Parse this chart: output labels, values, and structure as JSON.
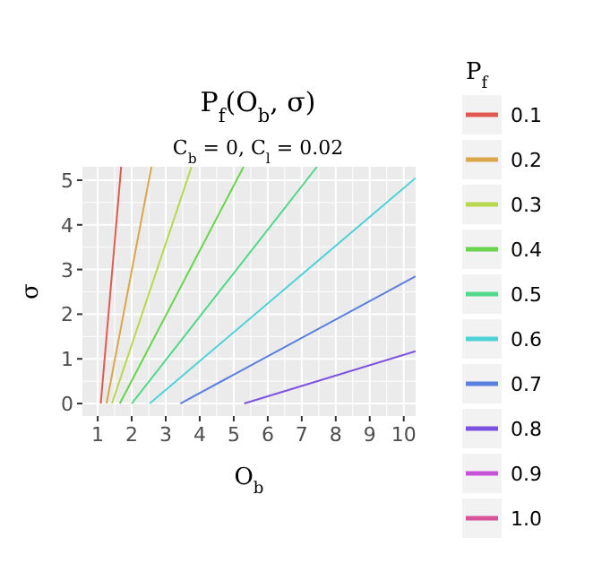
{
  "chart_data": {
    "type": "line",
    "title": "P$_{f}$(O$_{b}$, σ)",
    "subtitle": "C$_{b}$ = 0, C$_{l}$ = 0.02",
    "xlabel": "O$_{b}$",
    "ylabel": "σ",
    "legend_title": "P$_{f}$",
    "xlim": [
      0.55,
      10.35
    ],
    "ylim": [
      -0.28,
      5.3
    ],
    "xticks": [
      1,
      2,
      3,
      4,
      5,
      6,
      7,
      8,
      9,
      10
    ],
    "yticks": [
      0,
      1,
      2,
      3,
      4,
      5
    ],
    "grid": true,
    "legend": "right",
    "line_style": "solid",
    "marker": "none",
    "series": [
      {
        "name": "0.1",
        "color": "#e05b4f",
        "x": [
          1.09,
          1.69
        ],
        "values": [
          0,
          5.3
        ]
      },
      {
        "name": "0.2",
        "color": "#dca64c",
        "x": [
          1.26,
          2.58
        ],
        "values": [
          0,
          5.3
        ]
      },
      {
        "name": "0.3",
        "color": "#b7d84c",
        "x": [
          1.42,
          3.76
        ],
        "values": [
          0,
          5.3
        ]
      },
      {
        "name": "0.4",
        "color": "#67d64c",
        "x": [
          1.65,
          5.29
        ],
        "values": [
          0,
          5.3
        ]
      },
      {
        "name": "0.5",
        "color": "#52d88a",
        "x": [
          2.0,
          7.45
        ],
        "values": [
          0,
          5.3
        ]
      },
      {
        "name": "0.6",
        "color": "#4ed2d8",
        "x": [
          2.53,
          10.35
        ],
        "values": [
          0,
          5.05
        ]
      },
      {
        "name": "0.7",
        "color": "#5b7fe0",
        "x": [
          3.43,
          10.35
        ],
        "values": [
          0,
          2.85
        ]
      },
      {
        "name": "0.8",
        "color": "#7b52e0",
        "x": [
          5.31,
          10.35
        ],
        "values": [
          0,
          1.17
        ]
      },
      {
        "name": "0.9",
        "color": "#c652d8"
      },
      {
        "name": "1.0",
        "color": "#d8529a"
      }
    ]
  }
}
